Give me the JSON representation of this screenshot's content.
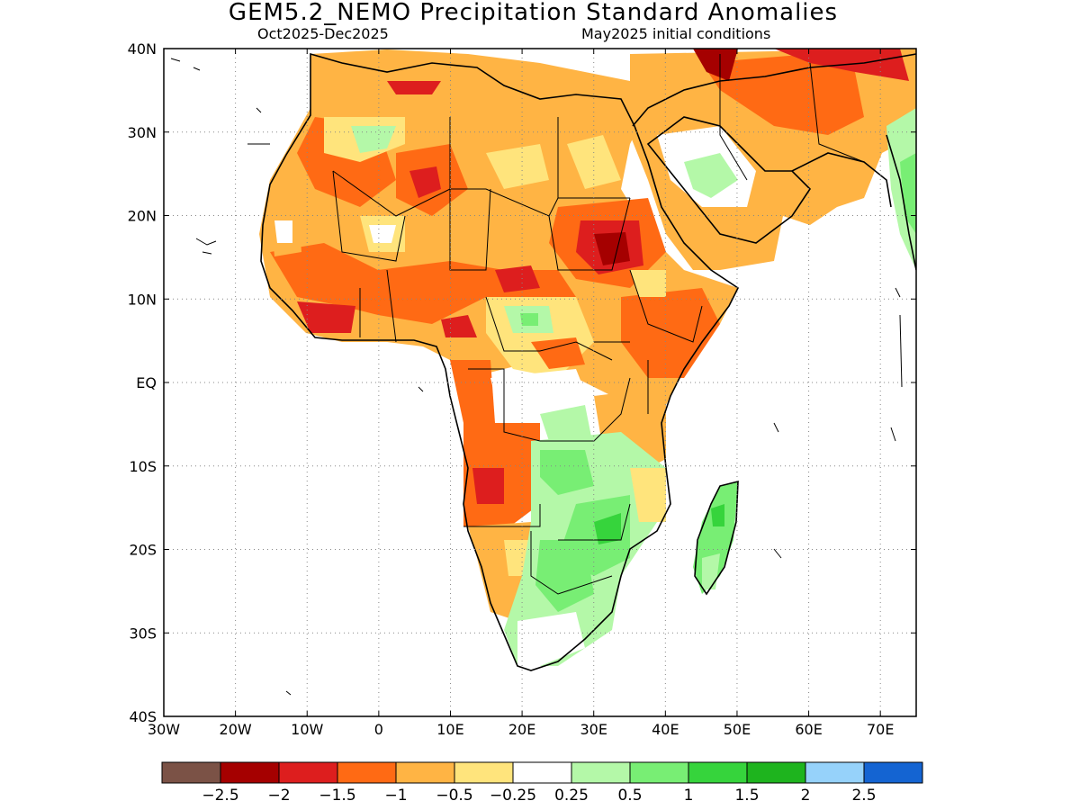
{
  "title": "GEM5.2_NEMO Precipitation Standard Anomalies",
  "subtitle_left": "Oct2025-Dec2025",
  "subtitle_right": "May2025 initial conditions",
  "map": {
    "lon_range": [
      -30,
      75
    ],
    "lat_range": [
      -40,
      40
    ],
    "x_ticks": [
      "30W",
      "20W",
      "10W",
      "0",
      "10E",
      "20E",
      "30E",
      "40E",
      "50E",
      "60E",
      "70E"
    ],
    "y_ticks": [
      "40N",
      "30N",
      "20N",
      "10N",
      "EQ",
      "10S",
      "20S",
      "30S",
      "40S"
    ],
    "grid": "dotted",
    "regions": [
      {
        "name": "Sahel and Sahara",
        "anomaly": "below normal (-0.5 to -2)"
      },
      {
        "name": "Sudan",
        "anomaly": "below normal (-1.5 to -2)"
      },
      {
        "name": "West Africa coast",
        "anomaly": "below normal (-1.5 to -2)"
      },
      {
        "name": "Angola",
        "anomaly": "below normal (-0.5 to -1.5)"
      },
      {
        "name": "Southern Africa",
        "anomaly": "above normal (0.25 to 1)"
      },
      {
        "name": "Madagascar",
        "anomaly": "above normal (0.25 to 1)"
      },
      {
        "name": "Arabian Peninsula",
        "anomaly": "near to above normal"
      },
      {
        "name": "Iran",
        "anomaly": "below normal (-0.5 to -2)"
      }
    ]
  },
  "colorbar": {
    "colors": [
      "#7b5246",
      "#a50000",
      "#dd1e1e",
      "#ff6a14",
      "#ffb444",
      "#ffe47c",
      "#ffffff",
      "#b4f8a8",
      "#78ee74",
      "#36d43c",
      "#1eb41e",
      "#96d2fa",
      "#1464d2"
    ],
    "labels": [
      "-2.5",
      "-2",
      "-1.5",
      "-1",
      "-0.5",
      "-0.25",
      "0.25",
      "0.5",
      "1",
      "1.5",
      "2",
      "2.5"
    ]
  }
}
